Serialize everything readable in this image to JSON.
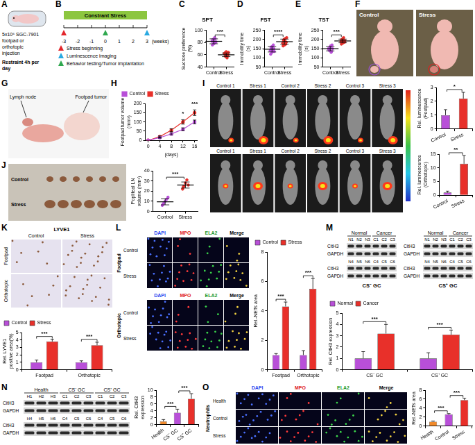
{
  "panels": [
    {
      "letter": "A",
      "injection": "5x10⁶ SGC-7901 footpad or orthotopic injection",
      "regimen": "Restraint 4h per day"
    },
    {
      "letter": "B",
      "bar_label": "Constrant Stress",
      "weeks": [
        -3,
        -2,
        -1,
        0,
        1,
        2,
        3
      ],
      "unit": "(weeks)",
      "events": [
        {
          "name": "Stress beginning",
          "week": -3,
          "color": "#e3262b"
        },
        {
          "name": "Luminescence imaging",
          "week": 3,
          "color": "#29a9e1"
        },
        {
          "name": "Behavior testing/Tumor implantation",
          "week": 0,
          "color": "#2fa84f"
        }
      ]
    },
    {
      "letter": "C"
    },
    {
      "letter": "D"
    },
    {
      "letter": "E"
    },
    {
      "letter": "F",
      "labels": [
        "Control",
        "Stress"
      ]
    },
    {
      "letter": "G",
      "labels": [
        "Lymph node",
        "Footpad tumor"
      ]
    },
    {
      "letter": "H"
    },
    {
      "letter": "I",
      "image_labels": [
        "Control 1",
        "Stress 1",
        "Control 2",
        "Stress 2",
        "Control 3",
        "Stress 3"
      ]
    },
    {
      "letter": "J",
      "labels": [
        "Control",
        "Stress"
      ]
    },
    {
      "letter": "K",
      "stain": "LYVE1",
      "columns": [
        "Control",
        "Stress"
      ],
      "rows": [
        "Footpad",
        "Orthotopic"
      ]
    },
    {
      "letter": "L",
      "columns": [
        "DAPI",
        "MPO",
        "ELA2",
        "Merge"
      ],
      "groups": [
        {
          "name": "Footpad",
          "rows": [
            "Control",
            "Stress"
          ]
        },
        {
          "name": "Orthotopic",
          "rows": [
            "Control",
            "Stress"
          ]
        }
      ]
    },
    {
      "letter": "M",
      "blots": [
        {
          "caption": "CS⁻ GC",
          "heads": [
            "Normal",
            "Cancer"
          ],
          "lanes": [
            [
              "N1",
              "N2",
              "N3",
              "C1",
              "C2",
              "C3"
            ],
            [
              "N4",
              "N5",
              "N6",
              "C4",
              "C5",
              "C6"
            ]
          ],
          "rows": [
            "CitH3",
            "GAPDH"
          ]
        },
        {
          "caption": "CS⁺ GC",
          "heads": [
            "Normal",
            "Cancer"
          ],
          "lanes": [
            [
              "N1",
              "N2",
              "N3",
              "C1",
              "C2",
              "C3"
            ],
            [
              "N4",
              "N5",
              "N6",
              "C4",
              "C5",
              "C6"
            ]
          ],
          "rows": [
            "CitH3",
            "GAPDH"
          ]
        }
      ]
    },
    {
      "letter": "N",
      "blot": {
        "heads": [
          "Health",
          "CS⁻ GC",
          "CS⁺ GC"
        ],
        "lanes": [
          [
            "H1",
            "H2",
            "H3",
            "C1",
            "C2",
            "C3",
            "C1",
            "C2",
            "C3"
          ],
          [
            "H4",
            "H5",
            "H6",
            "C4",
            "C5",
            "C6",
            "C4",
            "C5",
            "C6"
          ]
        ],
        "rows": [
          "CitH3",
          "GAPDH"
        ]
      }
    },
    {
      "letter": "O",
      "side_label": "Neutrophils",
      "columns": [
        "DAPI",
        "MPO",
        "ELA2",
        "Merge"
      ],
      "rows": [
        "Health",
        "Control",
        "Stress"
      ]
    }
  ],
  "chart_data": [
    {
      "type": "scatter",
      "title": "SPT",
      "y_label": "Sucrose preference (%)",
      "categories": [
        "Control",
        "Stress"
      ],
      "colors": [
        "#b84fd8",
        "#e8302a"
      ],
      "points": [
        [
          82,
          85,
          78,
          88,
          80,
          76,
          84,
          79,
          86,
          81
        ],
        [
          62,
          58,
          65,
          55,
          60,
          63,
          57,
          61,
          59,
          64
        ]
      ],
      "means": [
        82,
        60
      ],
      "errors": [
        4,
        3
      ],
      "ylim": [
        40,
        100
      ],
      "yticks": [
        40,
        60,
        80,
        100
      ],
      "grid": false,
      "annotations": [
        "***"
      ]
    },
    {
      "type": "scatter",
      "title": "FST",
      "y_label": "Immobility time (s)",
      "categories": [
        "Control",
        "Stress"
      ],
      "colors": [
        "#b84fd8",
        "#e8302a"
      ],
      "points": [
        [
          140,
          155,
          130,
          165,
          150,
          120,
          160,
          145,
          170,
          135
        ],
        [
          180,
          195,
          170,
          205,
          185,
          165,
          200,
          190,
          175,
          210
        ]
      ],
      "means": [
        147,
        188
      ],
      "errors": [
        15,
        14
      ],
      "ylim": [
        50,
        250
      ],
      "yticks": [
        50,
        100,
        150,
        200,
        250
      ],
      "grid": false,
      "annotations": [
        "****"
      ]
    },
    {
      "type": "scatter",
      "title": "TST",
      "y_label": "Immobility time (s)",
      "categories": [
        "Control",
        "Stress"
      ],
      "colors": [
        "#b84fd8",
        "#e8302a"
      ],
      "points": [
        [
          150,
          140,
          160,
          130,
          170,
          145,
          155,
          165,
          135,
          150
        ],
        [
          190,
          200,
          180,
          210,
          185,
          175,
          195,
          205,
          188,
          192
        ]
      ],
      "means": [
        150,
        192
      ],
      "errors": [
        12,
        10
      ],
      "ylim": [
        50,
        250
      ],
      "yticks": [
        50,
        100,
        150,
        200,
        250
      ],
      "grid": false,
      "annotations": [
        "***"
      ]
    },
    {
      "type": "line",
      "y_label": "Footpad tumor volume (mm³)",
      "x_label": "(days)",
      "x": [
        0,
        4,
        8,
        12,
        16
      ],
      "xlim": [
        -1,
        17
      ],
      "xticks": [
        0,
        4,
        8,
        12,
        16
      ],
      "ylim": [
        0,
        200
      ],
      "yticks": [
        0,
        50,
        100,
        150,
        200
      ],
      "series": [
        {
          "name": "Control",
          "color": "#b84fd8",
          "values": [
            0,
            15,
            35,
            60,
            100
          ],
          "errors": [
            0,
            3,
            5,
            8,
            10
          ]
        },
        {
          "name": "Stress",
          "color": "#e8302a",
          "values": [
            0,
            20,
            55,
            100,
            150
          ],
          "errors": [
            0,
            4,
            8,
            12,
            15
          ]
        }
      ],
      "legend": "top-left",
      "grid": false,
      "annotations": [
        null,
        null,
        null,
        "*",
        "***"
      ]
    },
    {
      "type": "bar",
      "y_label": "Rel. luminescence (Footpad)",
      "categories": [
        "Control",
        "Stress"
      ],
      "values": [
        1,
        2.2
      ],
      "errors": [
        0.4,
        0.45
      ],
      "colors": [
        "#b84fd8",
        "#e8302a"
      ],
      "ylim": [
        0,
        3
      ],
      "yticks": [
        0,
        1,
        2,
        3
      ],
      "grid": false,
      "annotations": [
        "*"
      ]
    },
    {
      "type": "bar",
      "y_label": "Rel. luminescence (Orthotopic)",
      "categories": [
        "Control",
        "Stress"
      ],
      "values": [
        1,
        11.5
      ],
      "errors": [
        0.5,
        3
      ],
      "colors": [
        "#b84fd8",
        "#e8302a"
      ],
      "ylim": [
        0,
        15
      ],
      "yticks": [
        0,
        5,
        10,
        15
      ],
      "grid": false,
      "annotations": [
        "**"
      ]
    },
    {
      "type": "scatter",
      "y_label": "Popliteal LN volume (mm³)",
      "categories": [
        "Control",
        "Stress"
      ],
      "colors": [
        "#b84fd8",
        "#e8302a"
      ],
      "points": [
        [
          6,
          8,
          10,
          12,
          14,
          7
        ],
        [
          22,
          25,
          28,
          31,
          26,
          24
        ]
      ],
      "means": [
        9.5,
        26
      ],
      "errors": [
        3,
        3
      ],
      "ylim": [
        0,
        40
      ],
      "yticks": [
        0,
        10,
        20,
        30,
        40
      ],
      "grid": false,
      "annotations": [
        "***"
      ]
    },
    {
      "type": "bar",
      "y_label": "Rel. LYVE1 positive area(%)",
      "categories": [
        "Footpad",
        "Orthotopic"
      ],
      "series": [
        {
          "name": "Control",
          "color": "#b84fd8",
          "values": [
            1,
            1
          ],
          "errors": [
            0.3,
            0.2
          ]
        },
        {
          "name": "Stress",
          "color": "#e8302a",
          "values": [
            3.8,
            3.3
          ],
          "errors": [
            0.3,
            0.4
          ]
        }
      ],
      "ylim": [
        0,
        5
      ],
      "yticks": [
        0,
        1,
        2,
        3,
        4,
        5
      ],
      "legend": "top-left",
      "grid": false,
      "annotations": [
        "***",
        "***"
      ]
    },
    {
      "type": "bar",
      "y_label": "Rel.-NETs area",
      "categories": [
        "Footpad",
        "Orthotopic"
      ],
      "series": [
        {
          "name": "Control",
          "color": "#b84fd8",
          "values": [
            1,
            1
          ],
          "errors": [
            0.1,
            0.3
          ]
        },
        {
          "name": "Stress",
          "color": "#e8302a",
          "values": [
            4.3,
            5.5
          ],
          "errors": [
            0.3,
            0.7
          ]
        }
      ],
      "ylim": [
        0,
        8
      ],
      "yticks": [
        0,
        2,
        4,
        6,
        8
      ],
      "legend": "top-left",
      "grid": false,
      "annotations": [
        "***",
        "***"
      ]
    },
    {
      "type": "bar",
      "y_label": "Rel. CitH3 expression",
      "categories": [
        "CS⁻ GC",
        "CS⁺ GC"
      ],
      "series": [
        {
          "name": "Normal",
          "color": "#b84fd8",
          "values": [
            1,
            1
          ],
          "errors": [
            0.6,
            0.5
          ]
        },
        {
          "name": "Cancer",
          "color": "#e8302a",
          "values": [
            3.2,
            3.1
          ],
          "errors": [
            0.8,
            0.4
          ]
        }
      ],
      "ylim": [
        0,
        5
      ],
      "yticks": [
        0,
        1,
        2,
        3,
        4,
        5
      ],
      "legend": "top-left",
      "grid": false,
      "annotations": [
        "***",
        "***"
      ]
    },
    {
      "type": "bar",
      "y_label": "Rel. CitH3 expression",
      "categories": [
        "Health",
        "CS⁻ GC",
        "CS⁺ GC"
      ],
      "values": [
        1,
        3.5,
        7.5
      ],
      "errors": [
        0.5,
        1,
        1.5
      ],
      "colors": [
        "#f08a2c",
        "#b84fd8",
        "#e8302a"
      ],
      "ylim": [
        0,
        10
      ],
      "yticks": [
        0,
        2,
        4,
        6,
        8,
        10
      ],
      "grid": false,
      "annotations": [
        "***",
        "***"
      ]
    },
    {
      "type": "bar",
      "y_label": "Rel.-NETs area",
      "categories": [
        "Health",
        "Control",
        "Stress"
      ],
      "values": [
        1,
        2.6,
        5.8
      ],
      "errors": [
        0.15,
        0.2,
        0.4
      ],
      "colors": [
        "#f08a2c",
        "#b84fd8",
        "#e8302a"
      ],
      "ylim": [
        0,
        8
      ],
      "yticks": [
        0,
        2,
        4,
        6,
        8
      ],
      "grid": false,
      "annotations": [
        "***",
        "***"
      ]
    }
  ]
}
